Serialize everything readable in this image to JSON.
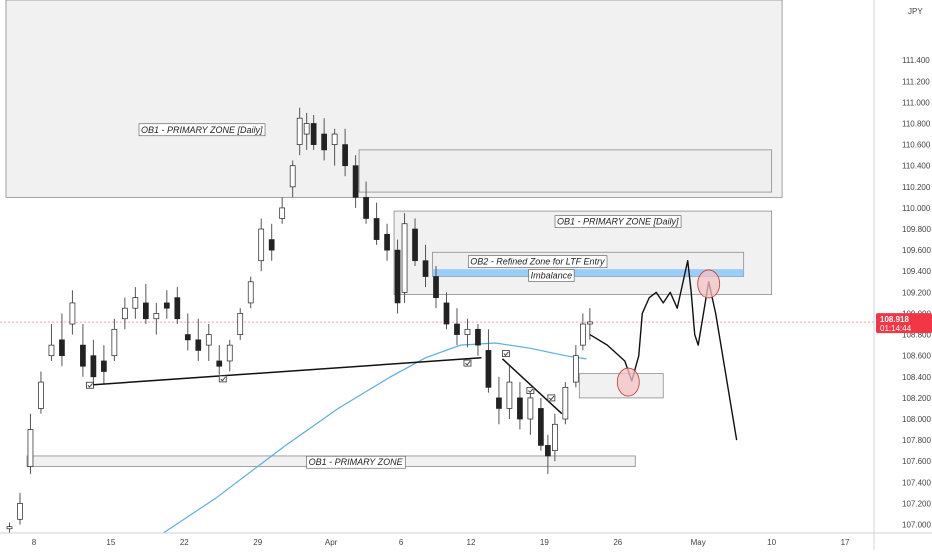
{
  "currency": "JPY",
  "price_tag": {
    "price": "108.918",
    "countdown": "01:14:44",
    "color": "#f23645"
  },
  "colors": {
    "up": "#26a69a",
    "down": "#ef5350",
    "ma": "#5aaee0",
    "zone": "#eeeeef",
    "zone_border": "#8c8c8c",
    "imbalance": "#90caf9",
    "price_line": "#f4a0a0"
  },
  "chart_data": {
    "type": "candlestick",
    "ylim": [
      106.92,
      111.97
    ],
    "y_ticks": [
      "107.000",
      "107.200",
      "107.400",
      "107.600",
      "107.800",
      "108.000",
      "108.200",
      "108.400",
      "108.600",
      "108.800",
      "109.000",
      "109.200",
      "109.400",
      "109.600",
      "109.800",
      "110.000",
      "110.200",
      "110.400",
      "110.600",
      "110.800",
      "111.000",
      "111.200",
      "111.400"
    ],
    "x_ticks": [
      "8",
      "15",
      "22",
      "29",
      "Apr",
      "6",
      "12",
      "19",
      "26",
      "May",
      "10",
      "17"
    ],
    "x_tick_index": [
      8,
      30,
      51,
      72,
      93,
      113,
      133,
      154,
      175,
      198,
      219,
      240
    ],
    "x_count": 250,
    "current_price": 108.918,
    "candles": [
      {
        "t": 1,
        "o": 106.96,
        "h": 107.02,
        "l": 106.92,
        "c": 106.98
      },
      {
        "t": 4,
        "o": 107.05,
        "h": 107.3,
        "l": 107.0,
        "c": 107.2
      },
      {
        "t": 7,
        "o": 107.55,
        "h": 108.05,
        "l": 107.48,
        "c": 107.9
      },
      {
        "t": 10,
        "o": 108.1,
        "h": 108.45,
        "l": 108.05,
        "c": 108.35
      },
      {
        "t": 13,
        "o": 108.6,
        "h": 108.9,
        "l": 108.55,
        "c": 108.7
      },
      {
        "t": 16,
        "o": 108.75,
        "h": 109.0,
        "l": 108.5,
        "c": 108.6
      },
      {
        "t": 19,
        "o": 108.9,
        "h": 109.22,
        "l": 108.8,
        "c": 109.1
      },
      {
        "t": 22,
        "o": 108.7,
        "h": 108.9,
        "l": 108.4,
        "c": 108.5
      },
      {
        "t": 25,
        "o": 108.6,
        "h": 108.75,
        "l": 108.3,
        "c": 108.4
      },
      {
        "t": 28,
        "o": 108.55,
        "h": 108.7,
        "l": 108.33,
        "c": 108.45
      },
      {
        "t": 31,
        "o": 108.6,
        "h": 108.95,
        "l": 108.55,
        "c": 108.85
      },
      {
        "t": 34,
        "o": 108.95,
        "h": 109.15,
        "l": 108.85,
        "c": 109.05
      },
      {
        "t": 37,
        "o": 109.05,
        "h": 109.25,
        "l": 108.95,
        "c": 109.15
      },
      {
        "t": 40,
        "o": 109.1,
        "h": 109.28,
        "l": 108.9,
        "c": 108.95
      },
      {
        "t": 43,
        "o": 108.95,
        "h": 109.1,
        "l": 108.8,
        "c": 109.0
      },
      {
        "t": 46,
        "o": 109.1,
        "h": 109.22,
        "l": 108.95,
        "c": 109.05
      },
      {
        "t": 49,
        "o": 109.15,
        "h": 109.25,
        "l": 108.9,
        "c": 108.95
      },
      {
        "t": 52,
        "o": 108.8,
        "h": 109.0,
        "l": 108.65,
        "c": 108.75
      },
      {
        "t": 55,
        "o": 108.75,
        "h": 108.95,
        "l": 108.55,
        "c": 108.65
      },
      {
        "t": 58,
        "o": 108.7,
        "h": 108.9,
        "l": 108.55,
        "c": 108.8
      },
      {
        "t": 61,
        "o": 108.55,
        "h": 108.7,
        "l": 108.42,
        "c": 108.5
      },
      {
        "t": 64,
        "o": 108.55,
        "h": 108.75,
        "l": 108.45,
        "c": 108.7
      },
      {
        "t": 67,
        "o": 108.8,
        "h": 109.05,
        "l": 108.75,
        "c": 109.0
      },
      {
        "t": 70,
        "o": 109.1,
        "h": 109.35,
        "l": 109.05,
        "c": 109.3
      },
      {
        "t": 73,
        "o": 109.5,
        "h": 109.9,
        "l": 109.4,
        "c": 109.8
      },
      {
        "t": 76,
        "o": 109.7,
        "h": 109.85,
        "l": 109.5,
        "c": 109.6
      },
      {
        "t": 79,
        "o": 109.9,
        "h": 110.1,
        "l": 109.85,
        "c": 110.0
      },
      {
        "t": 82,
        "o": 110.2,
        "h": 110.45,
        "l": 110.1,
        "c": 110.4
      },
      {
        "t": 84,
        "o": 110.6,
        "h": 110.95,
        "l": 110.5,
        "c": 110.85
      },
      {
        "t": 86,
        "o": 110.7,
        "h": 110.9,
        "l": 110.55,
        "c": 110.8
      },
      {
        "t": 88,
        "o": 110.8,
        "h": 110.88,
        "l": 110.55,
        "c": 110.6
      },
      {
        "t": 91,
        "o": 110.7,
        "h": 110.85,
        "l": 110.45,
        "c": 110.55
      },
      {
        "t": 94,
        "o": 110.6,
        "h": 110.75,
        "l": 110.4,
        "c": 110.7
      },
      {
        "t": 97,
        "o": 110.6,
        "h": 110.75,
        "l": 110.3,
        "c": 110.4
      },
      {
        "t": 100,
        "o": 110.4,
        "h": 110.5,
        "l": 110.0,
        "c": 110.1
      },
      {
        "t": 103,
        "o": 110.1,
        "h": 110.25,
        "l": 109.85,
        "c": 109.9
      },
      {
        "t": 106,
        "o": 109.9,
        "h": 110.05,
        "l": 109.65,
        "c": 109.7
      },
      {
        "t": 109,
        "o": 109.75,
        "h": 109.85,
        "l": 109.5,
        "c": 109.6
      },
      {
        "t": 112,
        "o": 109.6,
        "h": 109.7,
        "l": 109.0,
        "c": 109.1
      },
      {
        "t": 114,
        "o": 109.2,
        "h": 109.95,
        "l": 109.1,
        "c": 109.85
      },
      {
        "t": 117,
        "o": 109.8,
        "h": 109.9,
        "l": 109.45,
        "c": 109.5
      },
      {
        "t": 120,
        "o": 109.5,
        "h": 109.65,
        "l": 109.25,
        "c": 109.35
      },
      {
        "t": 123,
        "o": 109.35,
        "h": 109.45,
        "l": 109.05,
        "c": 109.15
      },
      {
        "t": 126,
        "o": 109.1,
        "h": 109.2,
        "l": 108.85,
        "c": 108.9
      },
      {
        "t": 129,
        "o": 108.9,
        "h": 109.05,
        "l": 108.7,
        "c": 108.8
      },
      {
        "t": 132,
        "o": 108.8,
        "h": 108.95,
        "l": 108.68,
        "c": 108.85
      },
      {
        "t": 135,
        "o": 108.85,
        "h": 108.9,
        "l": 108.6,
        "c": 108.7
      },
      {
        "t": 138,
        "o": 108.65,
        "h": 108.85,
        "l": 108.25,
        "c": 108.3
      },
      {
        "t": 141,
        "o": 108.2,
        "h": 108.4,
        "l": 107.95,
        "c": 108.1
      },
      {
        "t": 144,
        "o": 108.1,
        "h": 108.5,
        "l": 108.0,
        "c": 108.35
      },
      {
        "t": 147,
        "o": 108.2,
        "h": 108.35,
        "l": 107.9,
        "c": 108.0
      },
      {
        "t": 150,
        "o": 108.0,
        "h": 108.3,
        "l": 107.85,
        "c": 108.2
      },
      {
        "t": 153,
        "o": 108.1,
        "h": 108.2,
        "l": 107.7,
        "c": 107.75
      },
      {
        "t": 155,
        "o": 107.75,
        "h": 107.85,
        "l": 107.48,
        "c": 107.65
      },
      {
        "t": 157,
        "o": 107.7,
        "h": 108.05,
        "l": 107.6,
        "c": 107.95
      },
      {
        "t": 160,
        "o": 108.0,
        "h": 108.35,
        "l": 107.95,
        "c": 108.3
      },
      {
        "t": 163,
        "o": 108.35,
        "h": 108.7,
        "l": 108.3,
        "c": 108.6
      },
      {
        "t": 165,
        "o": 108.7,
        "h": 109.0,
        "l": 108.65,
        "c": 108.9
      },
      {
        "t": 167,
        "o": 108.9,
        "h": 109.05,
        "l": 108.75,
        "c": 108.92
      }
    ],
    "moving_average": [
      [
        45,
        106.92
      ],
      [
        60,
        107.25
      ],
      [
        80,
        107.75
      ],
      [
        95,
        108.1
      ],
      [
        110,
        108.4
      ],
      [
        120,
        108.58
      ],
      [
        130,
        108.7
      ],
      [
        140,
        108.72
      ],
      [
        150,
        108.67
      ],
      [
        160,
        108.6
      ],
      [
        166,
        108.57
      ]
    ],
    "zones": [
      {
        "label": "OB1 - PRIMARY ZONE [Daily]",
        "x0": 0,
        "x1": 222,
        "y0": 110.1,
        "y1": 111.97
      },
      {
        "label": "",
        "x0": 101,
        "x1": 219,
        "y0": 110.15,
        "y1": 110.55
      },
      {
        "label": "OB1 - PRIMARY ZONE [Daily]",
        "x0": 111,
        "x1": 219,
        "y0": 109.18,
        "y1": 109.97
      },
      {
        "label": "OB2 - Refined Zone for LTF Entry",
        "x0": 122,
        "x1": 211,
        "y0": 109.35,
        "y1": 109.58
      },
      {
        "label": "OB1 - PRIMARY ZONE",
        "x0": 6,
        "x1": 180,
        "y0": 107.55,
        "y1": 107.65
      },
      {
        "label": "",
        "x0": 164,
        "x1": 188,
        "y0": 108.2,
        "y1": 108.43
      }
    ],
    "imbalance": {
      "label": "Imbalance",
      "x0": 122,
      "x1": 211,
      "y0": 109.35,
      "y1": 109.42
    },
    "zone_label_positions": [
      [
        56,
        110.75
      ],
      [
        175,
        109.88
      ],
      [
        152,
        109.5
      ],
      [
        156,
        109.37
      ],
      [
        100,
        107.6
      ]
    ],
    "trendlines": [
      [
        [
          23,
          108.32
        ],
        [
          136,
          108.58
        ]
      ],
      [
        [
          142,
          108.57
        ],
        [
          159,
          108.05
        ]
      ]
    ],
    "check_markers": [
      [
        24,
        108.32
      ],
      [
        62,
        108.38
      ],
      [
        132,
        108.53
      ],
      [
        143,
        108.62
      ],
      [
        150,
        108.27
      ],
      [
        156,
        108.2
      ]
    ],
    "projection": [
      [
        167,
        108.8
      ],
      [
        172,
        108.7
      ],
      [
        177,
        108.55
      ],
      [
        179,
        108.36
      ],
      [
        181,
        108.6
      ],
      [
        182,
        109.0
      ],
      [
        184,
        109.15
      ],
      [
        186,
        109.2
      ],
      [
        188,
        109.1
      ],
      [
        190,
        109.2
      ],
      [
        192,
        109.05
      ],
      [
        194,
        109.35
      ],
      [
        195,
        109.5
      ],
      [
        196,
        109.2
      ],
      [
        197,
        108.8
      ],
      [
        198,
        108.7
      ],
      [
        200,
        109.1
      ],
      [
        201,
        109.3
      ],
      [
        203,
        109.0
      ],
      [
        206,
        108.4
      ],
      [
        209,
        107.8
      ]
    ],
    "circles": [
      [
        178,
        108.35
      ],
      [
        201,
        109.28
      ]
    ]
  }
}
